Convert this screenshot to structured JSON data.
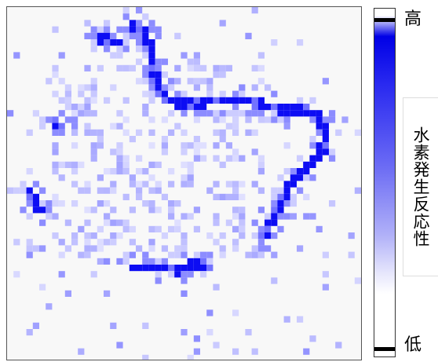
{
  "colorbar": {
    "label_high": "高",
    "label_low": "低",
    "title": "水素発生反応性"
  },
  "colors": {
    "high": "#0000e6",
    "low": "#ffffff",
    "background": "#f8f8f8"
  }
}
